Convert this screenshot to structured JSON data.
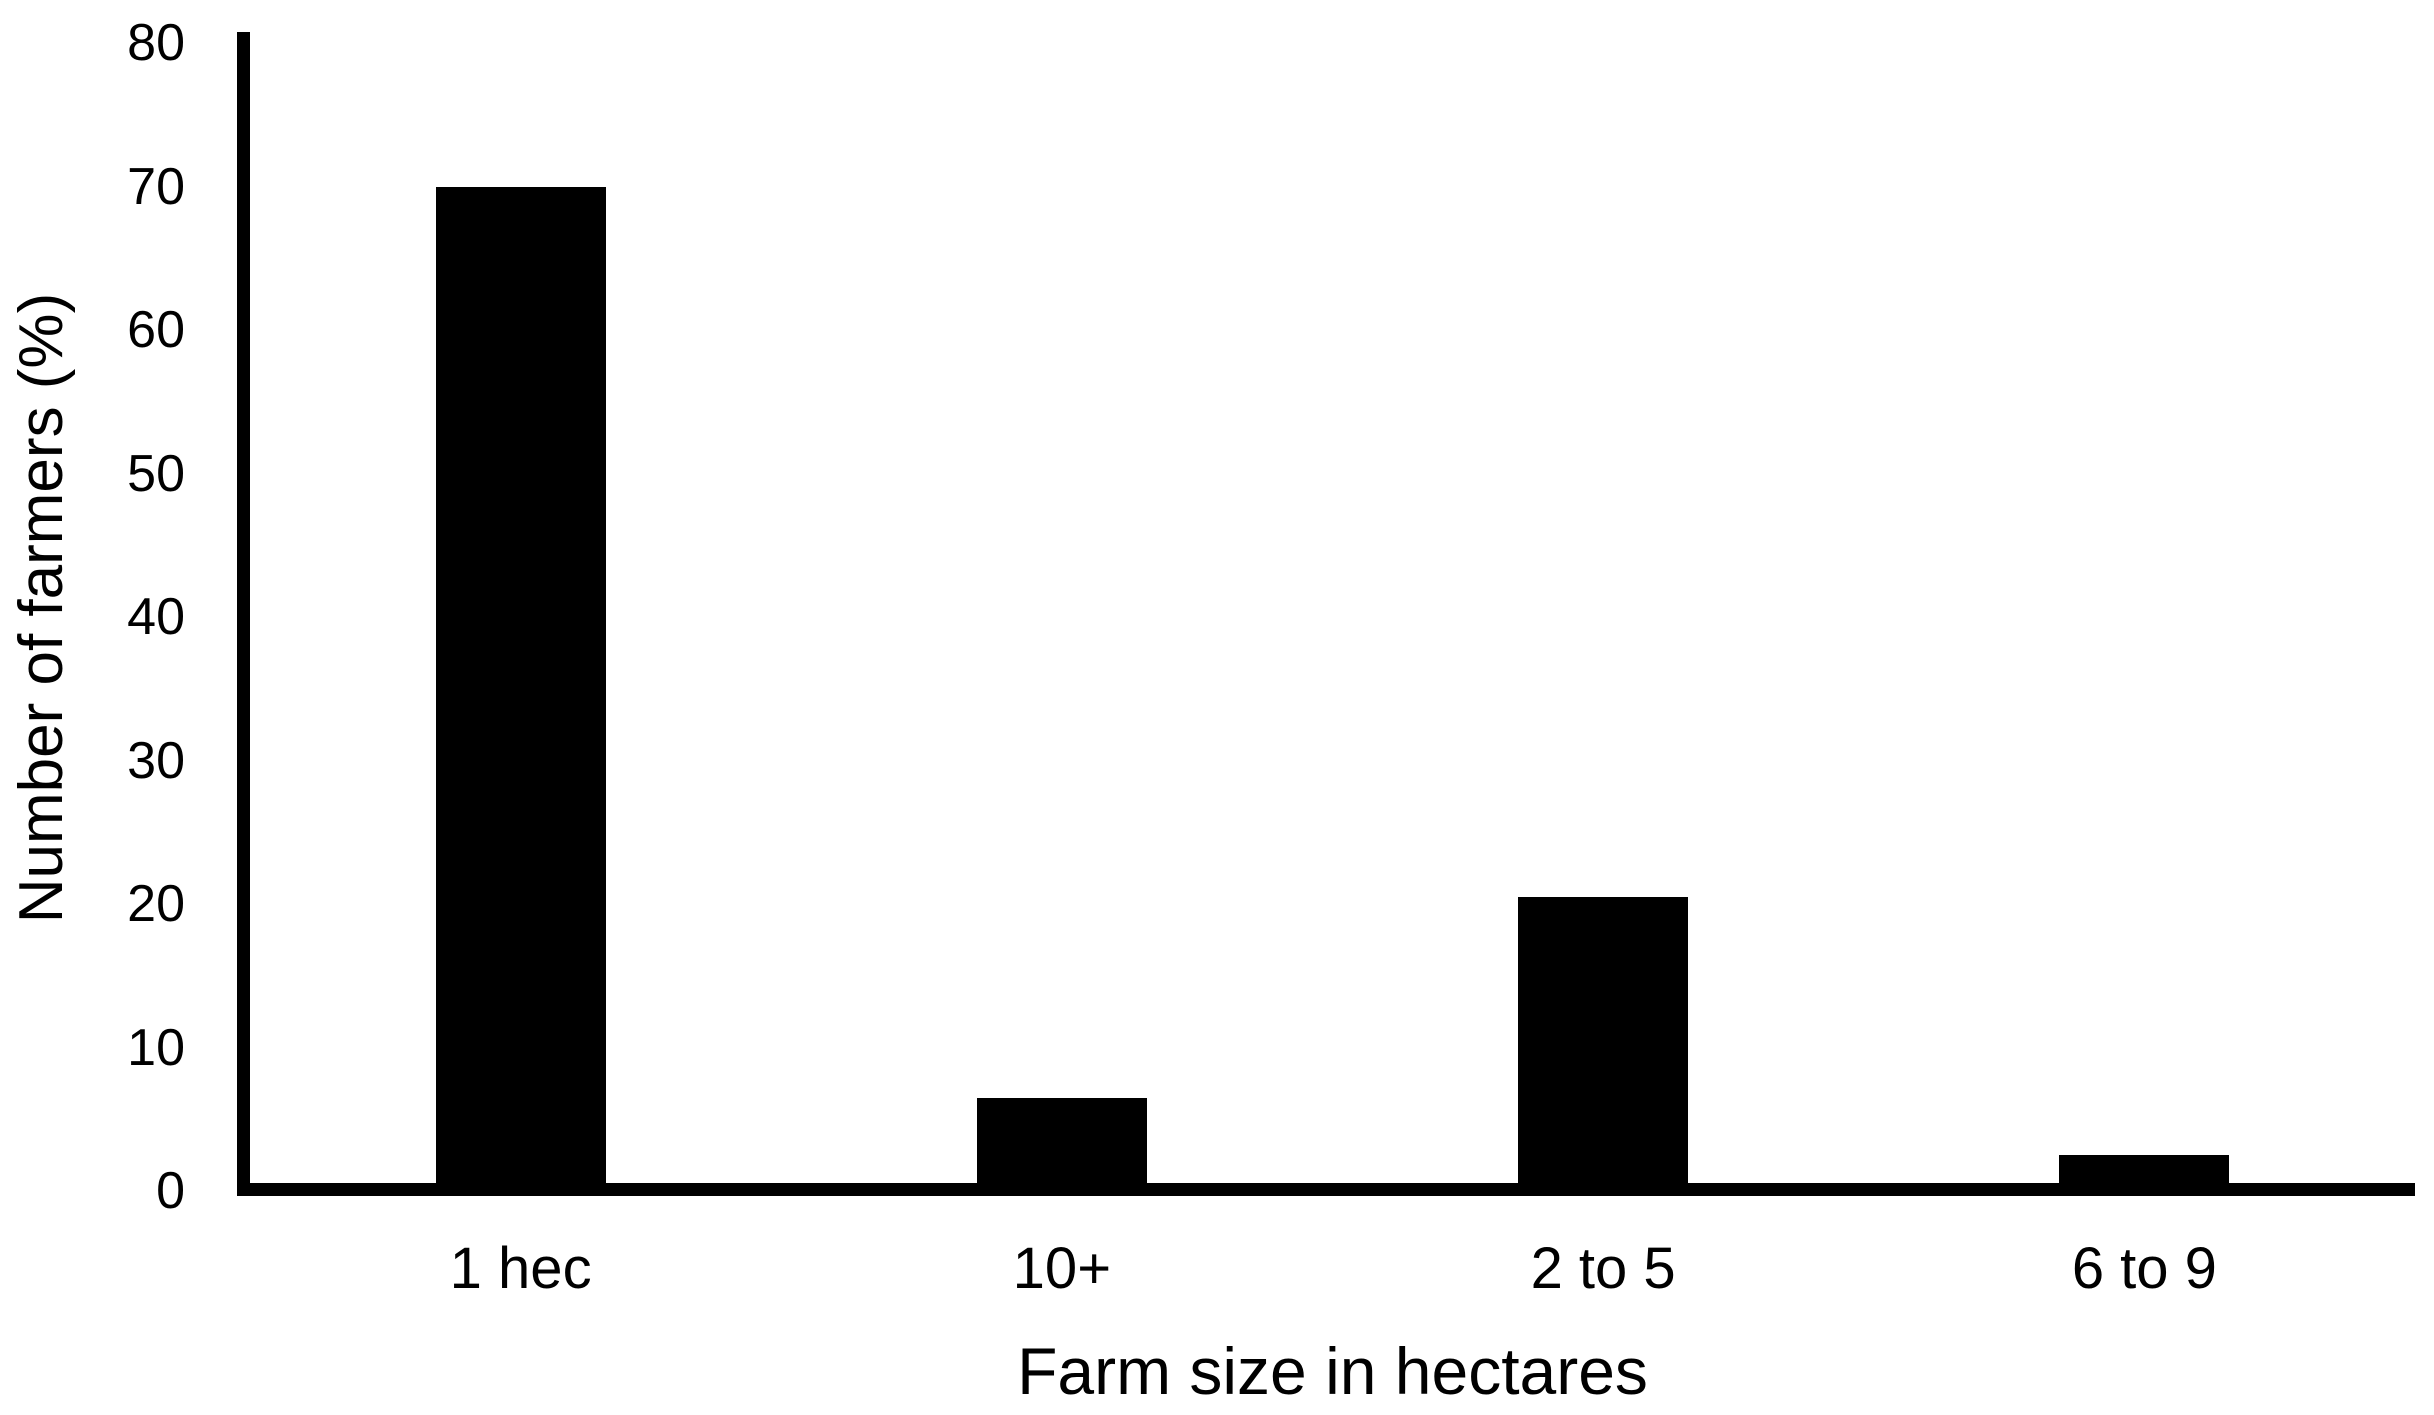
{
  "chart_data": {
    "type": "bar",
    "title": "",
    "categories": [
      "1 hec",
      "10+",
      "2 to 5",
      "6 to 9"
    ],
    "values": [
      70,
      6.5,
      20.5,
      2.5
    ],
    "xlabel": "Farm size in hectares",
    "ylabel": "Number of farmers (%)",
    "yticks": [
      0,
      10,
      20,
      30,
      40,
      50,
      60,
      70,
      80
    ],
    "ylim": [
      0,
      80
    ],
    "bar_color": "#000000",
    "axis_color": "#000000",
    "background_color": "#ffffff",
    "grid": false,
    "legend": false
  }
}
